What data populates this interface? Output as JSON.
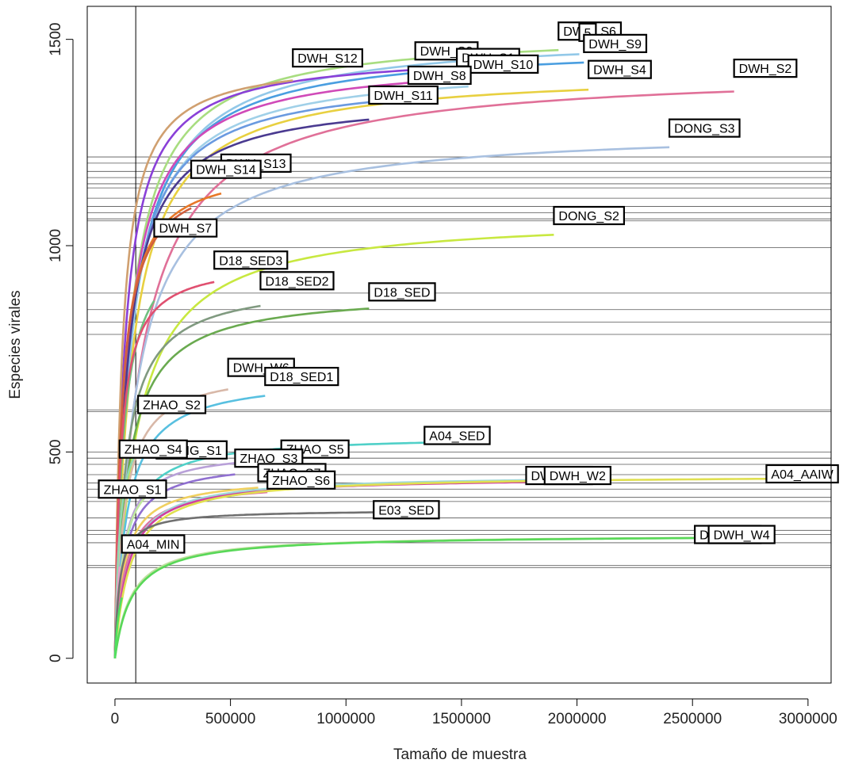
{
  "chart_data": {
    "type": "line",
    "title": "",
    "xlabel": "Tamaño de muestra",
    "ylabel": "Especies virales",
    "xlim": [
      -120000,
      3100000
    ],
    "ylim": [
      -60,
      1580
    ],
    "x_ticks": [
      0,
      500000,
      1000000,
      1500000,
      2000000,
      2500000,
      3000000
    ],
    "x_tick_labels": [
      "0",
      "500000",
      "1000000",
      "1500000",
      "2000000",
      "2500000",
      "3000000"
    ],
    "y_ticks": [
      0,
      500,
      1000,
      1500
    ],
    "y_tick_labels": [
      "0",
      "500",
      "1000",
      "1500"
    ],
    "vline_x": 90000,
    "grid": false,
    "legend": "none",
    "hlines": [
      1215,
      1200,
      1180,
      1165,
      1150,
      1140,
      1115,
      1095,
      1080,
      1065,
      1060,
      995,
      885,
      845,
      815,
      785,
      602,
      598,
      500,
      485,
      470,
      445,
      425,
      410,
      390,
      380,
      340,
      310,
      300,
      280,
      225,
      220
    ],
    "series": [
      {
        "name": "DWH_S6",
        "color": "#a8dd80",
        "asym": 1520,
        "k": 60000,
        "xmax": 1920000,
        "label": "DWH_S6",
        "lx": 1920000,
        "ly": 1520
      },
      {
        "name": "DWH_S5",
        "color": "#92c8e8",
        "asym": 1515,
        "k": 70000,
        "xmax": 2010000,
        "label": "5",
        "lx": 2010000,
        "ly": 1517
      },
      {
        "name": "DWH_S9",
        "color": "#4a9ee0",
        "asym": 1490,
        "k": 65000,
        "xmax": 2030000,
        "label": "DWH_S9",
        "lx": 2030000,
        "ly": 1490
      },
      {
        "name": "DWH_S3",
        "color": "#8a40d8",
        "asym": 1470,
        "k": 40000,
        "xmax": 1300000,
        "label": "DWH_S3",
        "lx": 1300000,
        "ly": 1472
      },
      {
        "name": "DWH_S1",
        "color": "#d04ab8",
        "asym": 1455,
        "k": 55000,
        "xmax": 1480000,
        "label": "DWH_S1",
        "lx": 1480000,
        "ly": 1456
      },
      {
        "name": "DWH_S12",
        "color": "#d0a070",
        "asym": 1455,
        "k": 30000,
        "xmax": 770000,
        "label": "DWH_S12",
        "lx": 770000,
        "ly": 1455
      },
      {
        "name": "DWH_S10",
        "color": "#a0d0e8",
        "asym": 1440,
        "k": 60000,
        "xmax": 1530000,
        "label": "DWH_S10",
        "lx": 1530000,
        "ly": 1440
      },
      {
        "name": "DWH_S2",
        "color": "#e07098",
        "asym": 1430,
        "k": 110000,
        "xmax": 2680000,
        "label": "DWH_S2",
        "lx": 2680000,
        "ly": 1430
      },
      {
        "name": "DWH_S4",
        "color": "#e8d040",
        "asym": 1425,
        "k": 70000,
        "xmax": 2050000,
        "label": "DWH_S4",
        "lx": 2050000,
        "ly": 1427
      },
      {
        "name": "DWH_S8",
        "color": "#6a9ae0",
        "asym": 1415,
        "k": 55000,
        "xmax": 1270000,
        "label": "DWH_S8",
        "lx": 1270000,
        "ly": 1413
      },
      {
        "name": "DWH_S11",
        "color": "#4a3a90",
        "asym": 1365,
        "k": 50000,
        "xmax": 1100000,
        "label": "DWH_S11",
        "lx": 1100000,
        "ly": 1365
      },
      {
        "name": "DONG_S3",
        "color": "#a8c0e0",
        "asym": 1285,
        "k": 90000,
        "xmax": 2400000,
        "label": "DONG_S3",
        "lx": 2400000,
        "ly": 1285
      },
      {
        "name": "DWH_S13",
        "color": "#e87828",
        "asym": 1200,
        "k": 30000,
        "xmax": 460000,
        "label": "DWH_S13",
        "lx": 460000,
        "ly": 1200
      },
      {
        "name": "DWH_S14",
        "color": "#d06040",
        "asym": 1190,
        "k": 30000,
        "xmax": 330000,
        "label": "DWH_S14",
        "lx": 330000,
        "ly": 1185
      },
      {
        "name": "DONG_S2",
        "color": "#c8e840",
        "asym": 1075,
        "k": 90000,
        "xmax": 1900000,
        "label": "DONG_S2",
        "lx": 1900000,
        "ly": 1073
      },
      {
        "name": "DWH_S7",
        "color": "#70c080",
        "asym": 1045,
        "k": 35000,
        "xmax": 170000,
        "label": "DWH_S7",
        "lx": 170000,
        "ly": 1043
      },
      {
        "name": "D18_SED3",
        "color": "#e05070",
        "asym": 965,
        "k": 25000,
        "xmax": 430000,
        "label": "D18_SED3",
        "lx": 430000,
        "ly": 965
      },
      {
        "name": "D18_SED2",
        "color": "#809a80",
        "asym": 915,
        "k": 45000,
        "xmax": 630000,
        "label": "D18_SED2",
        "lx": 630000,
        "ly": 915
      },
      {
        "name": "D18_SED",
        "color": "#6aaa50",
        "asym": 890,
        "k": 55000,
        "xmax": 1100000,
        "label": "D18_SED",
        "lx": 1100000,
        "ly": 888
      },
      {
        "name": "DWH_W6",
        "color": "#d8b8a8",
        "asym": 705,
        "k": 40000,
        "xmax": 490000,
        "label": "DWH_W6",
        "lx": 490000,
        "ly": 705
      },
      {
        "name": "D18_SED1",
        "color": "#58c0e0",
        "asym": 685,
        "k": 50000,
        "xmax": 650000,
        "label": "D18_SED1",
        "lx": 650000,
        "ly": 683
      },
      {
        "name": "ZHAO_S2",
        "color": "#90d8b0",
        "asym": 605,
        "k": 20000,
        "xmax": 100000,
        "label": "ZHAO_S2",
        "lx": 100000,
        "ly": 615
      },
      {
        "name": "A04_SED",
        "color": "#50d0c8",
        "asym": 540,
        "k": 45000,
        "xmax": 1340000,
        "label": "A04_SED",
        "lx": 1340000,
        "ly": 540
      },
      {
        "name": "ZHAO_S5",
        "color": "#b8a0d8",
        "asym": 505,
        "k": 35000,
        "xmax": 720000,
        "label": "ZHAO_S5",
        "lx": 720000,
        "ly": 507
      },
      {
        "name": "DONG_S1",
        "color": "#c0e8a0",
        "asym": 495,
        "k": 35000,
        "xmax": 180000,
        "label": "DONG_S1",
        "lx": 180000,
        "ly": 505
      },
      {
        "name": "ZHAO_S3",
        "color": "#9070d0",
        "asym": 480,
        "k": 40000,
        "xmax": 520000,
        "label": "ZHAO_S3",
        "lx": 520000,
        "ly": 485
      },
      {
        "name": "ZHAO_S4",
        "color": "#e8a0c8",
        "asym": 500,
        "k": 25000,
        "xmax": 20000,
        "label": "ZHAO_S4",
        "lx": 20000,
        "ly": 507
      },
      {
        "name": "ZHAO_S7",
        "color": "#f0d060",
        "asym": 440,
        "k": 40000,
        "xmax": 620000,
        "label": "ZHAO_S7",
        "lx": 620000,
        "ly": 450
      },
      {
        "name": "ZHAO_S6",
        "color": "#e070a0",
        "asym": 430,
        "k": 45000,
        "xmax": 660000,
        "label": "ZHAO_S6",
        "lx": 660000,
        "ly": 432
      },
      {
        "name": "DWH_W1",
        "color": "#a0d8d8",
        "asym": 445,
        "k": 55000,
        "xmax": 1780000,
        "label": "DWH_W1",
        "lx": 1780000,
        "ly": 443
      },
      {
        "name": "DWH_W2",
        "color": "#d040a0",
        "asym": 440,
        "k": 55000,
        "xmax": 1860000,
        "label": "DWH_W2",
        "lx": 1860000,
        "ly": 443
      },
      {
        "name": "A04_AAIW",
        "color": "#e0e050",
        "asym": 445,
        "k": 65000,
        "xmax": 2820000,
        "label": "A04_AAIW",
        "lx": 2820000,
        "ly": 447
      },
      {
        "name": "ZHAO_S1",
        "color": "#9ac0d8",
        "asym": 400,
        "k": 20000,
        "xmax": -70000,
        "label": "ZHAO_S1",
        "lx": -70000,
        "ly": 410
      },
      {
        "name": "E03_SED",
        "color": "#707070",
        "asym": 360,
        "k": 20000,
        "xmax": 1120000,
        "label": "E03_SED",
        "lx": 1120000,
        "ly": 360
      },
      {
        "name": "DWH_W3",
        "color": "#c0e0a0",
        "asym": 300,
        "k": 70000,
        "xmax": 2510000,
        "label": "DWH_W3",
        "lx": 2510000,
        "ly": 300
      },
      {
        "name": "DWH_W4",
        "color": "#58d858",
        "asym": 300,
        "k": 75000,
        "xmax": 2570000,
        "label": "DWH_W4",
        "lx": 2570000,
        "ly": 300
      },
      {
        "name": "A04_MIN",
        "color": "#50e060",
        "asym": 270,
        "k": 25000,
        "xmax": 30000,
        "label": "A04_MIN",
        "lx": 30000,
        "ly": 277
      }
    ]
  }
}
